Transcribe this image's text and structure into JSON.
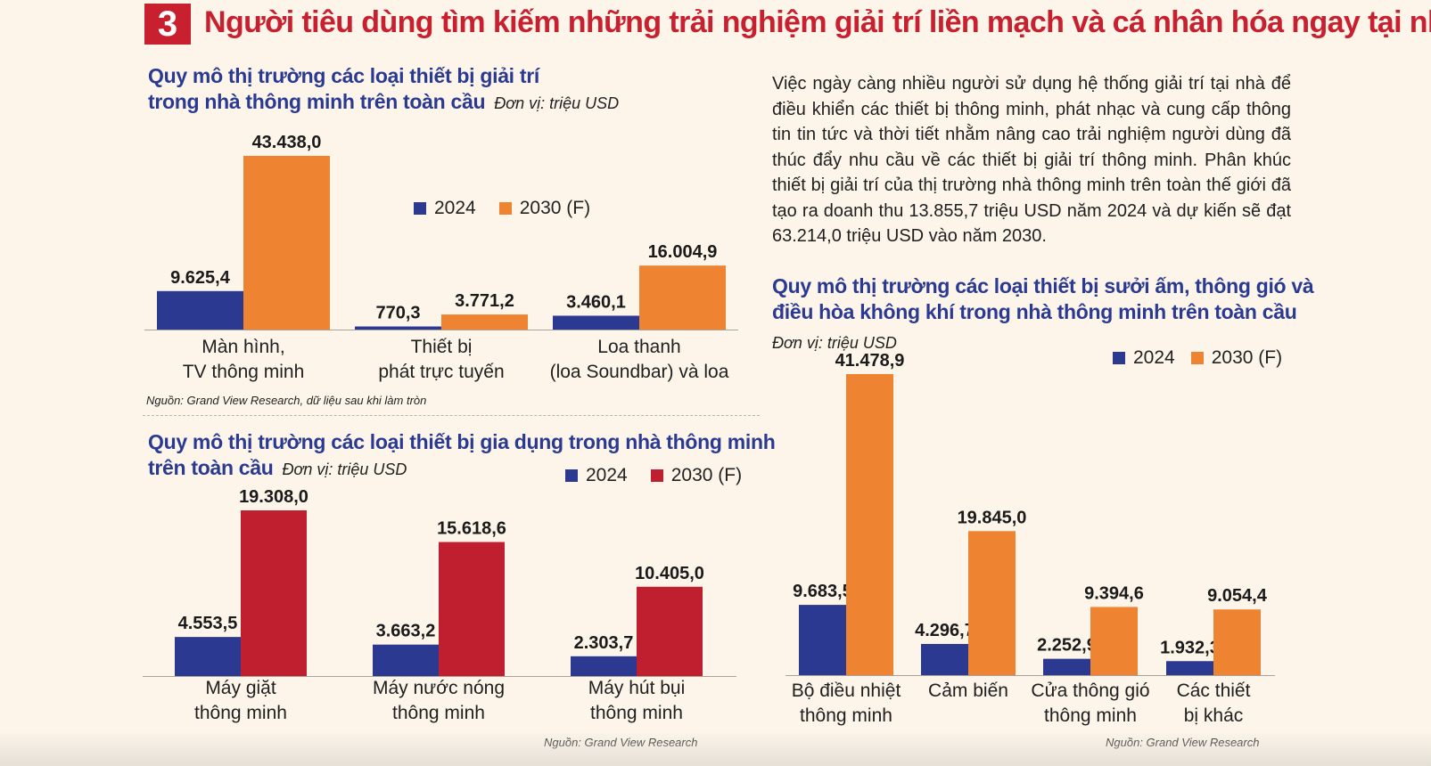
{
  "header": {
    "number": "3",
    "title": "Người tiêu dùng tìm kiếm những trải nghiệm giải trí liền mạch và cá nhân hóa ngay tại nhà"
  },
  "paragraph": "Việc ngày càng nhiều người sử dụng hệ thống giải trí tại nhà để điều khiển các thiết bị thông minh, phát nhạc và cung cấp thông tin tin tức và thời tiết nhằm nâng cao trải nghiệm người dùng đã thúc đẩy nhu cầu về các thiết bị giải trí thông minh. Phân khúc thiết bị giải trí của thị trường nhà thông minh trên toàn thế giới đã tạo ra doanh thu 13.855,7 triệu USD năm 2024 và dự kiến sẽ đạt 63.214,0 triệu USD vào năm 2030.",
  "chart_data": [
    {
      "type": "bar",
      "title_lines": [
        "Quy mô thị trường các loại thiết bị giải trí",
        "trong nhà thông minh trên toàn cầu"
      ],
      "unit": "Đơn vị: triệu USD",
      "categories": [
        [
          "Màn hình,",
          "TV thông minh"
        ],
        [
          "Thiết bị",
          "phát trực tuyến"
        ],
        [
          "Loa thanh",
          "(loa Soundbar) và loa"
        ]
      ],
      "series": [
        {
          "name": "2024",
          "color": "#2b3990",
          "values": [
            9625.4,
            770.3,
            3460.1
          ],
          "labels": [
            "9.625,4",
            "770,3",
            "3.460,1"
          ]
        },
        {
          "name": "2030 (F)",
          "color": "#ee8432",
          "values": [
            43438.0,
            3771.2,
            16004.9
          ],
          "labels": [
            "43.438,0",
            "3.771,2",
            "16.004,9"
          ]
        }
      ],
      "ylim": [
        0,
        43438
      ],
      "legend": "center",
      "grid": false,
      "source": "Nguồn: Grand View Research, dữ liệu sau khi làm tròn"
    },
    {
      "type": "bar",
      "title_lines": [
        "Quy mô thị trường các loại thiết bị gia dụng trong nhà thông minh",
        "trên toàn cầu"
      ],
      "unit": "Đơn vị: triệu USD",
      "categories": [
        [
          "Máy giặt",
          "thông minh"
        ],
        [
          "Máy nước nóng",
          "thông minh"
        ],
        [
          "Máy hút bụi",
          "thông minh"
        ]
      ],
      "series": [
        {
          "name": "2024",
          "color": "#2b3990",
          "values": [
            4553.5,
            3663.2,
            2303.7
          ],
          "labels": [
            "4.553,5",
            "3.663,2",
            "2.303,7"
          ]
        },
        {
          "name": "2030 (F)",
          "color": "#c01f2f",
          "values": [
            19308.0,
            15618.6,
            10405.0
          ],
          "labels": [
            "19.308,0",
            "15.618,6",
            "10.405,0"
          ]
        }
      ],
      "ylim": [
        0,
        19308
      ],
      "legend": "top-right",
      "grid": false,
      "source": "Nguồn: Grand View Research"
    },
    {
      "type": "bar",
      "title_lines": [
        "Quy mô thị trường các loại thiết bị sưởi ấm, thông gió và",
        "điều hòa không khí trong nhà thông minh trên toàn cầu"
      ],
      "unit": "Đơn vị: triệu USD",
      "categories": [
        [
          "Bộ điều nhiệt",
          "thông minh"
        ],
        [
          "Cảm biến"
        ],
        [
          "Cửa thông gió",
          "thông minh"
        ],
        [
          "Các thiết",
          "bị khác"
        ]
      ],
      "series": [
        {
          "name": "2024",
          "color": "#2b3990",
          "values": [
            9683.5,
            4296.7,
            2252.9,
            1932.3
          ],
          "labels": [
            "9.683,5",
            "4.296,7",
            "2.252,9",
            "1.932,3"
          ]
        },
        {
          "name": "2030 (F)",
          "color": "#ee8432",
          "values": [
            41478.9,
            19845.0,
            9394.6,
            9054.4
          ],
          "labels": [
            "41.478,9",
            "19.845,0",
            "9.394,6",
            "9.054,4"
          ]
        }
      ],
      "ylim": [
        0,
        41478.9
      ],
      "legend": "top-right",
      "grid": false,
      "source": "Nguồn: Grand View Research"
    }
  ]
}
